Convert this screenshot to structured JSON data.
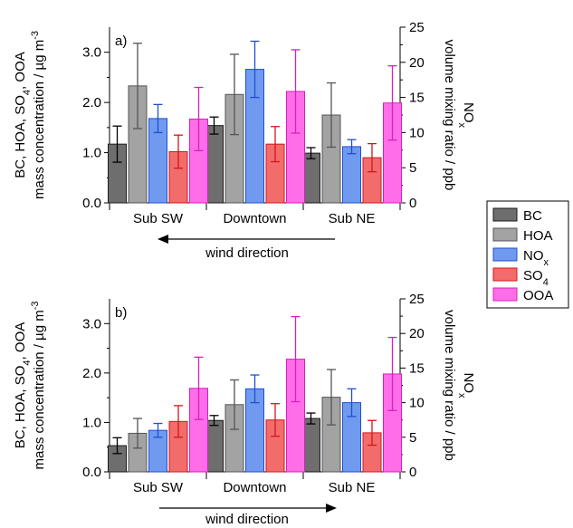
{
  "legend": {
    "items": [
      {
        "label": "BC",
        "color": "#6e6e6e"
      },
      {
        "label": "HOA",
        "color": "#a3a3a3"
      },
      {
        "label": "NOx",
        "color": "#6f9af0"
      },
      {
        "label": "SO4",
        "color": "#f26c6c"
      },
      {
        "label": "OOA",
        "color": "#ff6ee8"
      }
    ]
  },
  "colors": {
    "BC": {
      "fill": "#6e6e6e",
      "edge": "#1a1a1a",
      "err": "#000000"
    },
    "HOA": {
      "fill": "#a3a3a3",
      "edge": "#555555",
      "err": "#555555"
    },
    "NOx": {
      "fill": "#6f9af0",
      "edge": "#1f4fd0",
      "err": "#1f4fd0"
    },
    "SO4": {
      "fill": "#f26c6c",
      "edge": "#d01818",
      "err": "#d01818"
    },
    "OOA": {
      "fill": "#ff6ee8",
      "edge": "#d81ec0",
      "err": "#d81ec0"
    }
  },
  "chart_data": [
    {
      "type": "bar",
      "panel_label": "a)",
      "categories": [
        "Sub SW",
        "Downtown",
        "Sub NE"
      ],
      "ylabel_left_line1": "BC, HOA, SO4, OOA",
      "ylabel_left_line2": "mass concentration / µg m-3",
      "ylabel_right_line1": "NOx",
      "ylabel_right_line2": "volume mixing ratio / ppb",
      "ylim_left": [
        0,
        3.5
      ],
      "ylim_right": [
        0,
        25
      ],
      "yticks_left": [
        "0.0",
        "1.0",
        "2.0",
        "3.0"
      ],
      "yticks_right": [
        "0",
        "5",
        "10",
        "15",
        "20",
        "25"
      ],
      "wind_label": "wind direction",
      "wind_arrow": "left",
      "series": [
        {
          "name": "BC",
          "axis": "left",
          "values": [
            1.17,
            1.54,
            0.99
          ],
          "err": [
            0.36,
            0.17,
            0.11
          ]
        },
        {
          "name": "HOA",
          "axis": "left",
          "values": [
            2.33,
            2.16,
            1.75
          ],
          "err": [
            0.85,
            0.8,
            0.64
          ]
        },
        {
          "name": "NOx",
          "axis": "right",
          "values": [
            12.0,
            19.0,
            8.0
          ],
          "err": [
            2.0,
            4.0,
            1.0
          ]
        },
        {
          "name": "SO4",
          "axis": "left",
          "values": [
            1.02,
            1.17,
            0.9
          ],
          "err": [
            0.33,
            0.35,
            0.28
          ]
        },
        {
          "name": "OOA",
          "axis": "left",
          "values": [
            1.67,
            2.22,
            1.99
          ],
          "err": [
            0.63,
            0.83,
            0.74
          ]
        }
      ]
    },
    {
      "type": "bar",
      "panel_label": "b)",
      "categories": [
        "Sub SW",
        "Downtown",
        "Sub NE"
      ],
      "ylabel_left_line1": "BC, HOA, SO4, OOA",
      "ylabel_left_line2": "mass concentration / µg m-3",
      "ylabel_right_line1": "NOx",
      "ylabel_right_line2": "volume mixing ratio / ppb",
      "ylim_left": [
        0,
        3.5
      ],
      "ylim_right": [
        0,
        25
      ],
      "yticks_left": [
        "0.0",
        "1.0",
        "2.0",
        "3.0"
      ],
      "yticks_right": [
        "0",
        "5",
        "10",
        "15",
        "20",
        "25"
      ],
      "wind_label": "wind direction",
      "wind_arrow": "right",
      "series": [
        {
          "name": "BC",
          "axis": "left",
          "values": [
            0.53,
            1.04,
            1.08
          ],
          "err": [
            0.16,
            0.1,
            0.11
          ]
        },
        {
          "name": "HOA",
          "axis": "left",
          "values": [
            0.78,
            1.36,
            1.51
          ],
          "err": [
            0.3,
            0.5,
            0.56
          ]
        },
        {
          "name": "NOx",
          "axis": "right",
          "values": [
            6.0,
            12.0,
            10.0
          ],
          "err": [
            1.0,
            2.0,
            2.0
          ]
        },
        {
          "name": "SO4",
          "axis": "left",
          "values": [
            1.02,
            1.05,
            0.79
          ],
          "err": [
            0.32,
            0.33,
            0.25
          ]
        },
        {
          "name": "OOA",
          "axis": "left",
          "values": [
            1.69,
            2.28,
            1.98
          ],
          "err": [
            0.63,
            0.86,
            0.74
          ]
        }
      ]
    }
  ]
}
